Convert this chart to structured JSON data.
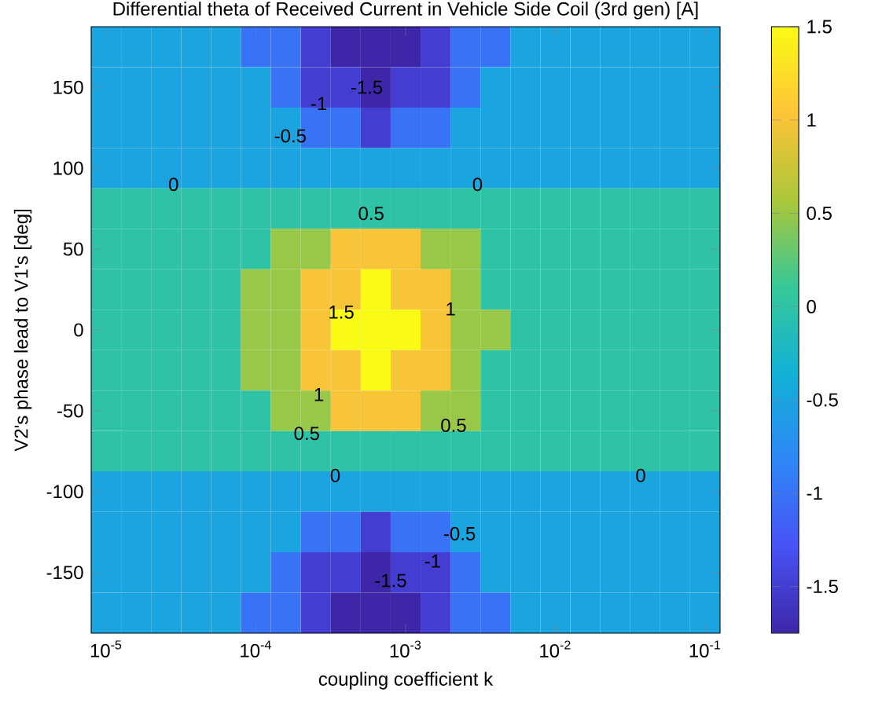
{
  "chart_data": {
    "type": "heatmap",
    "title": "Differential theta of Received Current in Vehicle Side Coil (3rd gen) [A]",
    "xlabel": "coupling coefficient k",
    "ylabel": "V2's phase lead to V1's [deg]",
    "clim": [
      -1.75,
      1.5
    ],
    "cticks": [
      -1.5,
      -1,
      -0.5,
      0,
      0.5,
      1,
      1.5
    ],
    "categories": [
      "10$^{-5}$",
      null,
      null,
      null,
      null,
      "10$^{-4}$",
      null,
      null,
      null,
      null,
      "10$^{-3}$",
      null,
      null,
      null,
      null,
      "10$^{-2}$",
      null,
      null,
      null,
      null,
      "10$^{-1}$"
    ],
    "y_categories": [
      null,
      "150",
      null,
      "100",
      null,
      "50",
      null,
      "0",
      null,
      "-50",
      null,
      "-100",
      null,
      "-150",
      null
    ],
    "cells": [
      [
        -0.5,
        -0.5,
        -0.5,
        -0.5,
        -0.5,
        -1,
        -1,
        -1.5,
        -1.75,
        -1.75,
        -1.75,
        -1.5,
        -1,
        -1,
        -0.5,
        -0.5,
        -0.5,
        -0.5,
        -0.5,
        -0.5,
        -0.5
      ],
      [
        -0.5,
        -0.5,
        -0.5,
        -0.5,
        -0.5,
        -0.5,
        -1,
        -1.5,
        -1.5,
        -1.75,
        -1.5,
        -1.5,
        -1,
        -0.5,
        -0.5,
        -0.5,
        -0.5,
        -0.5,
        -0.5,
        -0.5,
        -0.5
      ],
      [
        -0.5,
        -0.5,
        -0.5,
        -0.5,
        -0.5,
        -0.5,
        -0.5,
        -1,
        -1,
        -1.5,
        -1,
        -1,
        -0.5,
        -0.5,
        -0.5,
        -0.5,
        -0.5,
        -0.5,
        -0.5,
        -0.5,
        -0.5
      ],
      [
        -0.5,
        -0.5,
        -0.5,
        -0.5,
        -0.5,
        -0.5,
        -0.5,
        -0.5,
        -0.5,
        -0.5,
        -0.5,
        -0.5,
        -0.5,
        -0.5,
        -0.5,
        -0.5,
        -0.5,
        -0.5,
        -0.5,
        -0.5,
        -0.5
      ],
      [
        0,
        0,
        0,
        0,
        0,
        0,
        0,
        0,
        0,
        0,
        0,
        0,
        0,
        0,
        0,
        0,
        0,
        0,
        0,
        0,
        0
      ],
      [
        0,
        0,
        0,
        0,
        0,
        0,
        0.5,
        0.5,
        1,
        1,
        1,
        0.5,
        0.5,
        0,
        0,
        0,
        0,
        0,
        0,
        0,
        0
      ],
      [
        0,
        0,
        0,
        0,
        0,
        0.5,
        0.5,
        1,
        1,
        1.5,
        1,
        1,
        0.5,
        0,
        0,
        0,
        0,
        0,
        0,
        0,
        0
      ],
      [
        0,
        0,
        0,
        0,
        0,
        0.5,
        0.5,
        1,
        1.5,
        1.5,
        1.5,
        1,
        0.5,
        0.5,
        0,
        0,
        0,
        0,
        0,
        0,
        0
      ],
      [
        0,
        0,
        0,
        0,
        0,
        0.5,
        0.5,
        1,
        1,
        1.5,
        1,
        1,
        0.5,
        0,
        0,
        0,
        0,
        0,
        0,
        0,
        0
      ],
      [
        0,
        0,
        0,
        0,
        0,
        0,
        0.5,
        0.5,
        1,
        1,
        1,
        0.5,
        0.5,
        0,
        0,
        0,
        0,
        0,
        0,
        0,
        0
      ],
      [
        0,
        0,
        0,
        0,
        0,
        0,
        0,
        0,
        0,
        0,
        0,
        0,
        0,
        0,
        0,
        0,
        0,
        0,
        0,
        0,
        0
      ],
      [
        -0.5,
        -0.5,
        -0.5,
        -0.5,
        -0.5,
        -0.5,
        -0.5,
        -0.5,
        -0.5,
        -0.5,
        -0.5,
        -0.5,
        -0.5,
        -0.5,
        -0.5,
        -0.5,
        -0.5,
        -0.5,
        -0.5,
        -0.5,
        -0.5
      ],
      [
        -0.5,
        -0.5,
        -0.5,
        -0.5,
        -0.5,
        -0.5,
        -0.5,
        -1,
        -1,
        -1.5,
        -1,
        -1,
        -0.5,
        -0.5,
        -0.5,
        -0.5,
        -0.5,
        -0.5,
        -0.5,
        -0.5,
        -0.5
      ],
      [
        -0.5,
        -0.5,
        -0.5,
        -0.5,
        -0.5,
        -0.5,
        -1,
        -1.5,
        -1.5,
        -1.75,
        -1.5,
        -1.5,
        -1,
        -0.5,
        -0.5,
        -0.5,
        -0.5,
        -0.5,
        -0.5,
        -0.5,
        -0.5
      ],
      [
        -0.5,
        -0.5,
        -0.5,
        -0.5,
        -0.5,
        -1,
        -1,
        -1.5,
        -1.75,
        -1.75,
        -1.75,
        -1.5,
        -1,
        -1,
        -0.5,
        -0.5,
        -0.5,
        -0.5,
        -0.5,
        -0.5,
        -0.5
      ]
    ],
    "annotations": [
      "-1.5",
      "-1",
      "-0.5",
      "0",
      "0",
      "0.5",
      "1.5",
      "1",
      "1",
      "0.5",
      "0.5",
      "0",
      "0",
      "-0.5",
      "-1",
      "-1.5"
    ]
  }
}
